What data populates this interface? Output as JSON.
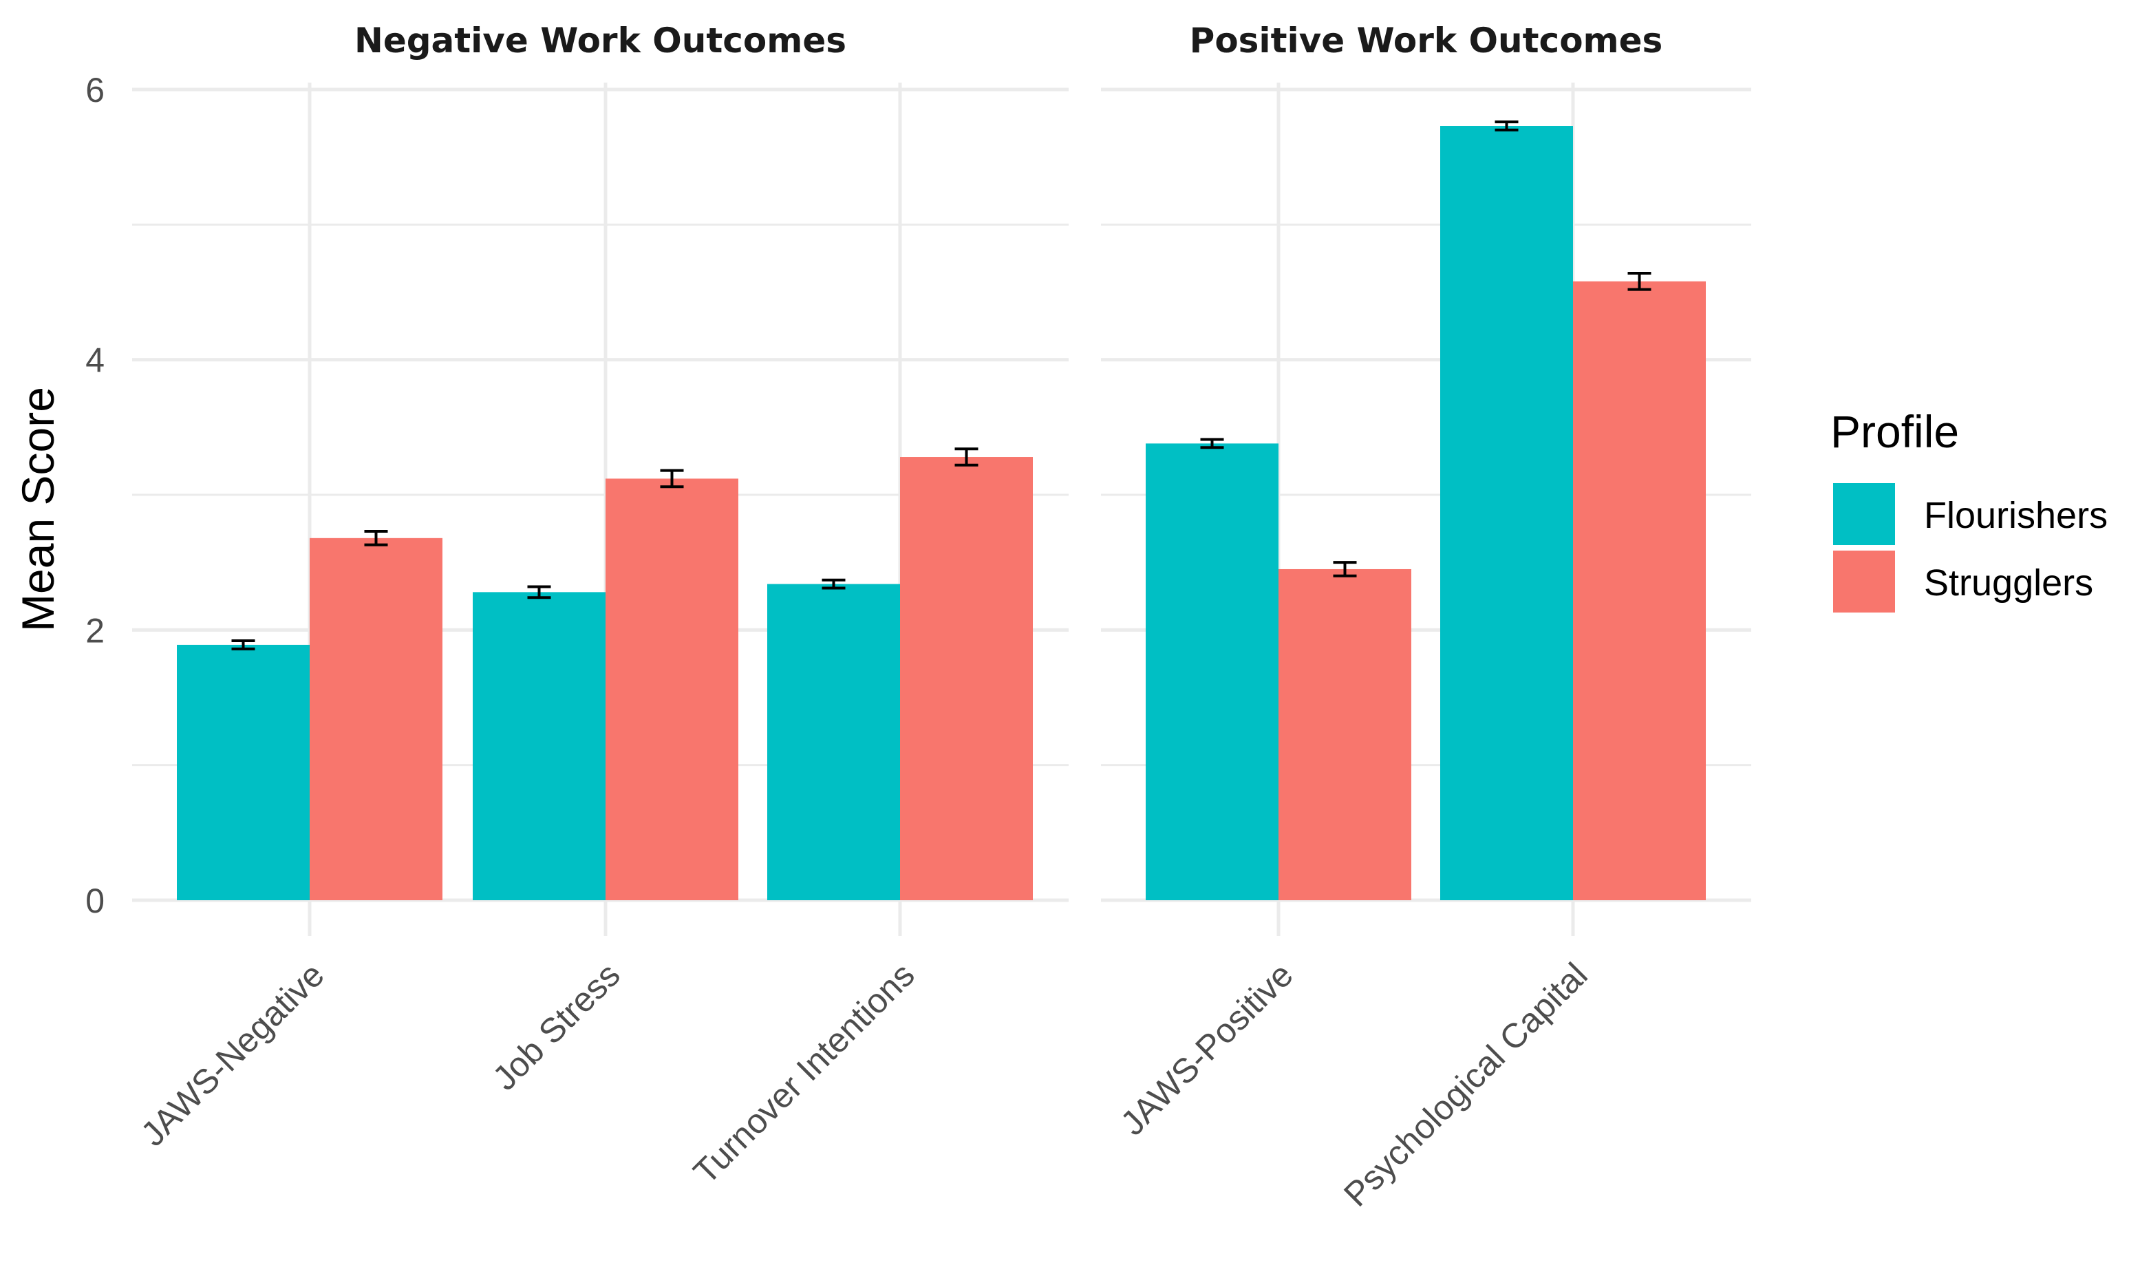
{
  "chart_data": {
    "type": "bar",
    "ylabel": "Mean Score",
    "xlabel": "",
    "ylim": [
      0,
      6
    ],
    "yticks": [
      0,
      2,
      4,
      6
    ],
    "grid": true,
    "legend": {
      "title": "Profile",
      "position": "right",
      "entries": [
        "Flourishers",
        "Strugglers"
      ]
    },
    "colors": {
      "Flourishers": "#00BFC4",
      "Strugglers": "#F8766D"
    },
    "facets": [
      {
        "title": "Negative Work Outcomes",
        "categories": [
          "JAWS-Negative",
          "Job Stress",
          "Turnover Intentions"
        ],
        "series": [
          {
            "name": "Flourishers",
            "values": [
              1.89,
              2.28,
              2.34
            ],
            "errors": [
              0.03,
              0.04,
              0.03
            ]
          },
          {
            "name": "Strugglers",
            "values": [
              2.68,
              3.12,
              3.28
            ],
            "errors": [
              0.05,
              0.06,
              0.06
            ]
          }
        ]
      },
      {
        "title": "Positive Work Outcomes",
        "categories": [
          "JAWS-Positive",
          "Psychological Capital"
        ],
        "series": [
          {
            "name": "Flourishers",
            "values": [
              3.38,
              5.73
            ],
            "errors": [
              0.03,
              0.03
            ]
          },
          {
            "name": "Strugglers",
            "values": [
              2.45,
              4.58
            ],
            "errors": [
              0.05,
              0.06
            ]
          }
        ]
      }
    ]
  }
}
